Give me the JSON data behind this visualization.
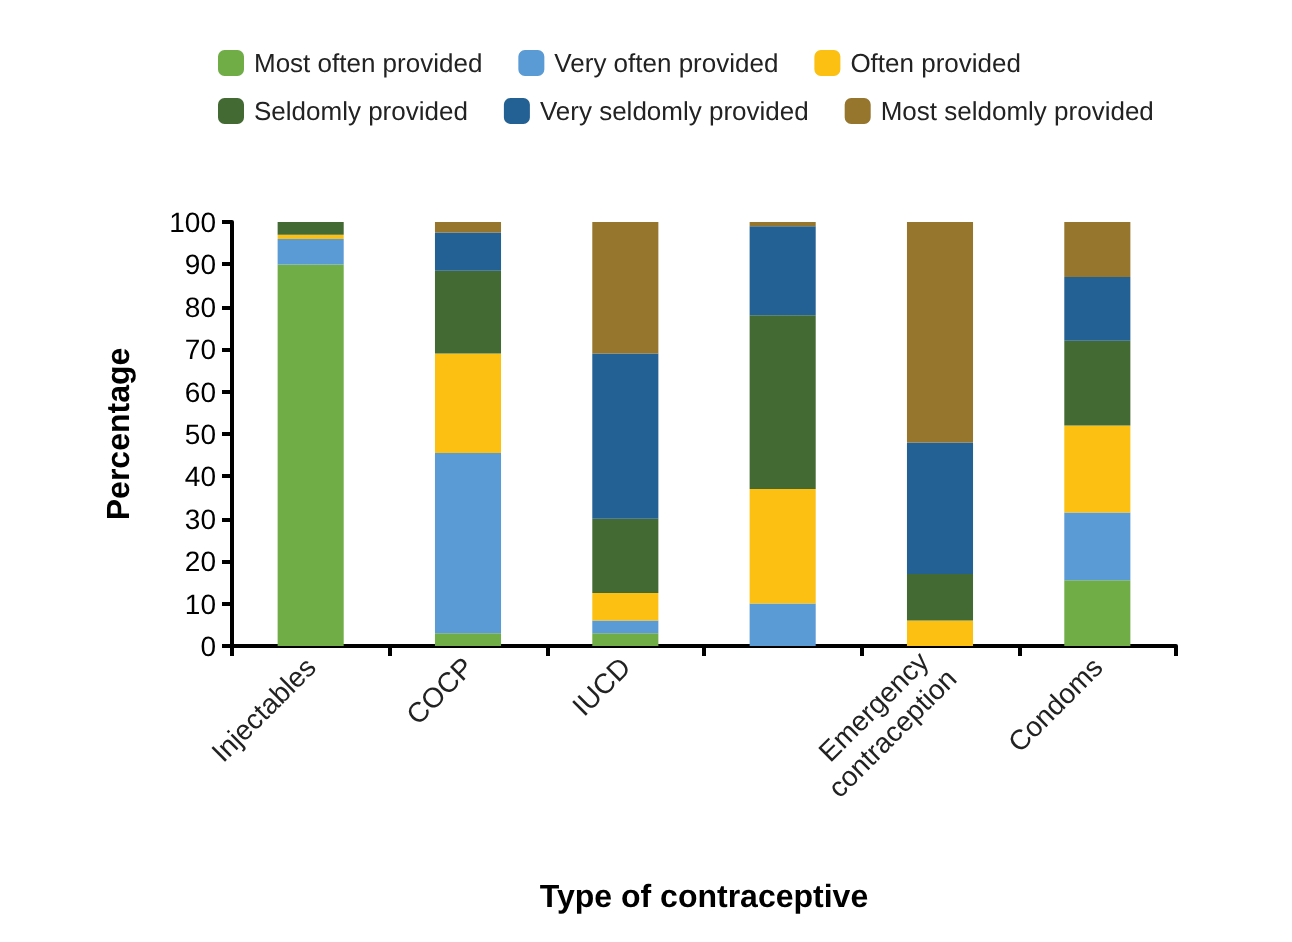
{
  "chart_data": {
    "type": "bar",
    "stacked": true,
    "xlabel": "Type of contraceptive",
    "ylabel": "Percentage",
    "categories": [
      "Injectables",
      "COCP",
      "IUCD",
      null,
      "Emergency contraception",
      "Condoms"
    ],
    "series": [
      {
        "name": "Most often provided",
        "color": "#70ad47",
        "values": [
          90,
          3,
          3,
          0,
          0,
          15.5
        ]
      },
      {
        "name": "Very often provided",
        "color": "#5b9bd5",
        "values": [
          6,
          42.5,
          3,
          10,
          0,
          16
        ]
      },
      {
        "name": "Often provided",
        "color": "#fbc012",
        "values": [
          1,
          23.5,
          6.5,
          27,
          6,
          20.5
        ]
      },
      {
        "name": "Seldomly provided",
        "color": "#436a33",
        "values": [
          3,
          19.5,
          17.5,
          41,
          11,
          20
        ]
      },
      {
        "name": "Very seldomly provided",
        "color": "#236093",
        "values": [
          0,
          9,
          39,
          21,
          31,
          15
        ]
      },
      {
        "name": "Most seldomly provided",
        "color": "#96752d",
        "values": [
          0,
          2.5,
          31,
          1,
          52,
          13
        ]
      }
    ],
    "ylim": [
      0,
      100
    ],
    "yticks": [
      0,
      10,
      20,
      30,
      40,
      50,
      60,
      70,
      80,
      90,
      100
    ],
    "grid": false,
    "legend": "top"
  }
}
